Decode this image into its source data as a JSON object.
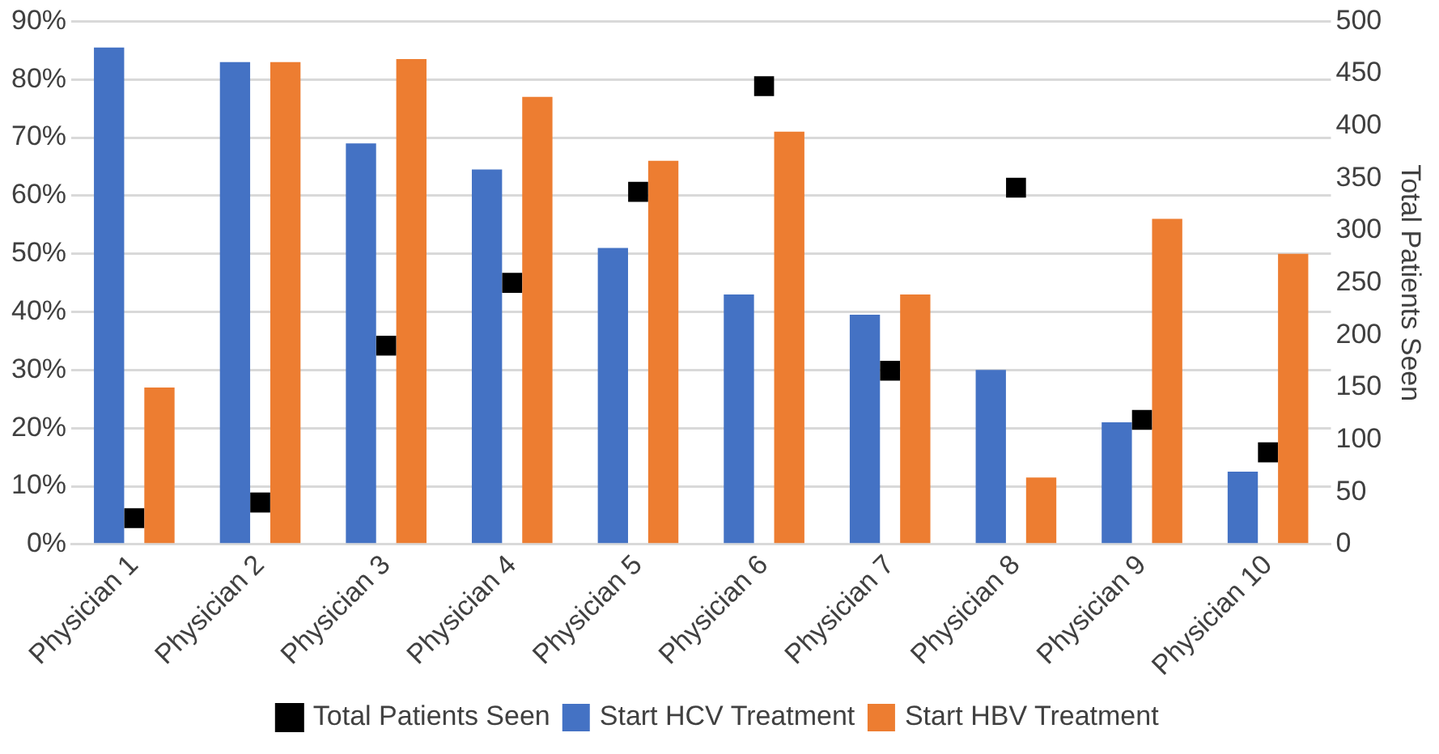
{
  "chart_data": {
    "type": "bar",
    "y2label": "Total Patients Seen",
    "categories": [
      "Physician 1",
      "Physician 2",
      "Physician 3",
      "Physician 4",
      "Physician 5",
      "Physician 6",
      "Physician 7",
      "Physician 8",
      "Physician 9",
      "Physician 10"
    ],
    "series": [
      {
        "name": "Start HCV Treatment",
        "color": "#4472c4",
        "values": [
          85.5,
          83,
          69,
          64.5,
          51,
          43,
          39.5,
          30,
          21,
          12.5
        ]
      },
      {
        "name": "Start HBV Treatment",
        "color": "#ed7d31",
        "values": [
          27,
          83,
          83.5,
          77,
          66,
          71,
          43,
          11.5,
          56,
          50
        ]
      },
      {
        "name": "Total Patients Seen",
        "type": "scatter",
        "axis": "y2",
        "color": "#000000",
        "values": [
          25,
          40,
          190,
          250,
          337,
          438,
          166,
          341,
          119,
          88
        ]
      }
    ],
    "ylim": [
      0,
      90
    ],
    "yticks": [
      {
        "value": 0,
        "label": "0%"
      },
      {
        "value": 10,
        "label": "10%"
      },
      {
        "value": 20,
        "label": "20%"
      },
      {
        "value": 30,
        "label": "30%"
      },
      {
        "value": 40,
        "label": "40%"
      },
      {
        "value": 50,
        "label": "50%"
      },
      {
        "value": 60,
        "label": "60%"
      },
      {
        "value": 70,
        "label": "70%"
      },
      {
        "value": 80,
        "label": "80%"
      },
      {
        "value": 90,
        "label": "90%"
      }
    ],
    "y2lim": [
      0,
      500
    ],
    "y2ticks": [
      0,
      50,
      100,
      150,
      200,
      250,
      300,
      350,
      400,
      450,
      500
    ],
    "grid": "y",
    "legend": "bottom",
    "marker": "square"
  }
}
